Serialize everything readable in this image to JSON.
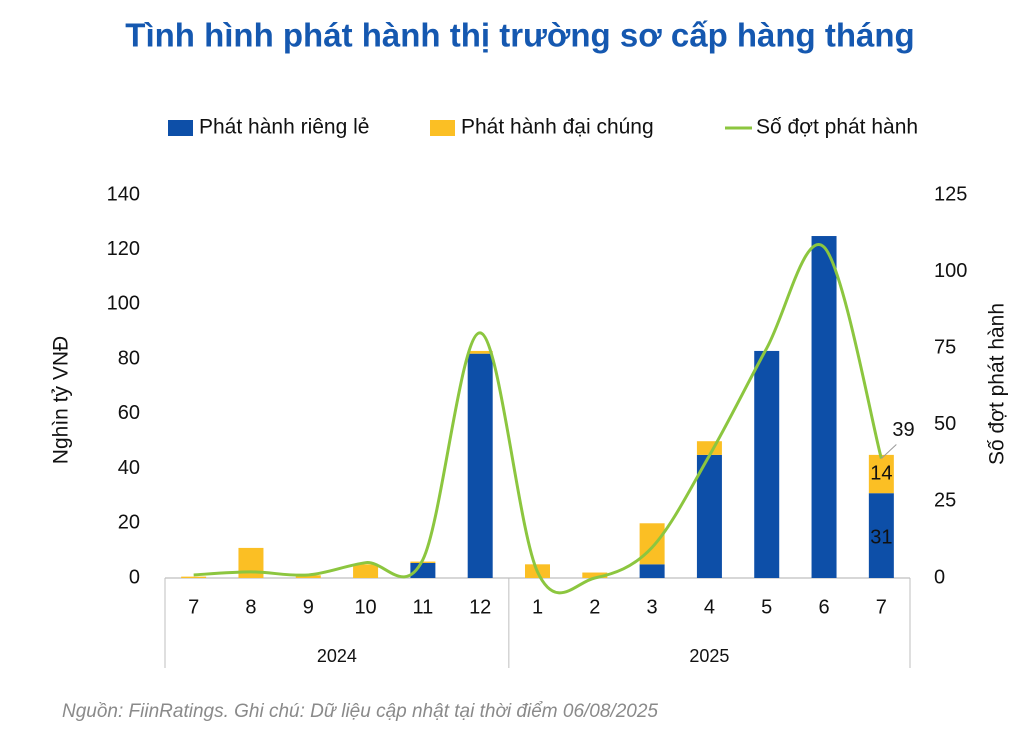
{
  "chart_data": {
    "type": "bar",
    "title": "Tình hình phát hành thị trường sơ cấp hàng tháng",
    "ylabel": "Nghìn tỷ VNĐ",
    "y2label": "Số đợt phát hành",
    "source": "Nguồn: FiinRatings. Ghi chú: Dữ liệu cập nhật tại thời điểm 06/08/2025",
    "groups": [
      {
        "name": "2024",
        "categories": [
          "7",
          "8",
          "9",
          "10",
          "11",
          "12"
        ]
      },
      {
        "name": "2025",
        "categories": [
          "1",
          "2",
          "3",
          "4",
          "5",
          "6",
          "7"
        ]
      }
    ],
    "series": [
      {
        "name": "Phát hành riêng lẻ",
        "type": "bar",
        "color": "#0d4fa8",
        "values": [
          0,
          0,
          0,
          0,
          5.5,
          82,
          0,
          0,
          5,
          45,
          83,
          125,
          31
        ],
        "value_labels": [
          null,
          null,
          null,
          null,
          null,
          null,
          null,
          null,
          null,
          null,
          null,
          null,
          "31"
        ]
      },
      {
        "name": "Phát hành đại chúng",
        "type": "bar",
        "color": "#fbbf24",
        "values": [
          0.5,
          11,
          1,
          5,
          0.5,
          1,
          5,
          2,
          15,
          5,
          0,
          0,
          14
        ],
        "value_labels": [
          null,
          null,
          null,
          null,
          null,
          null,
          null,
          null,
          null,
          null,
          null,
          null,
          "14"
        ]
      },
      {
        "name": "Số đợt phát hành",
        "type": "line",
        "axis": "y2",
        "color": "#8cc63f",
        "values": [
          1,
          2,
          1,
          5,
          6,
          80,
          2,
          0,
          10,
          40,
          75,
          108,
          39
        ],
        "value_labels": [
          null,
          null,
          null,
          null,
          null,
          null,
          null,
          null,
          null,
          null,
          null,
          null,
          "39"
        ]
      }
    ],
    "ylim": [
      0,
      140
    ],
    "yticks": [
      0,
      20,
      40,
      60,
      80,
      100,
      120,
      140
    ],
    "y2lim": [
      0,
      125
    ],
    "y2ticks": [
      0,
      25,
      50,
      75,
      100,
      125
    ],
    "stacked": true,
    "grid": false,
    "legend": "top"
  }
}
